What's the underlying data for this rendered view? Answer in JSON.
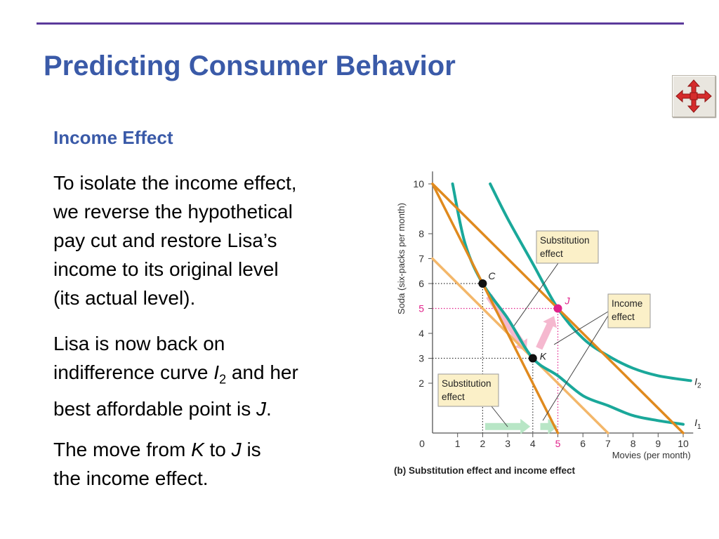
{
  "slide": {
    "title": "Predicting Consumer Behavior",
    "subtitle": "Income Effect",
    "paragraph1": [
      "To isolate the income effect,",
      "we reverse the hypothetical",
      "pay cut and restore Lisa’s",
      "income to its original level",
      "(its actual level)."
    ],
    "paragraph2": {
      "line1": "Lisa is now back on",
      "line2_before": "indifference curve ",
      "line2_var": "I",
      "line2_sub": "2",
      "line2_after": " and her",
      "line3_before": "best affordable point is ",
      "line3_var": "J",
      "line3_after": "."
    },
    "paragraph3": {
      "line1_before": "The move from ",
      "line1_from": "K",
      "line1_mid": " to ",
      "line1_to": "J",
      "line1_after": " is",
      "line2": "the income effect."
    },
    "nav_icon": "four-way-arrow-icon",
    "colors": {
      "title": "#3a5aa8",
      "rule": "#5b3a9b",
      "budget_line": "#e08a1e",
      "budget_line_light": "#f3b76a",
      "indifference_curve": "#1aa89a",
      "highlight": "#e0218a",
      "substitution_arrow": "#b8e6c6",
      "income_arrow": "#f5b8cf",
      "label_box": "#fbf0c8"
    }
  },
  "chart_data": {
    "type": "line",
    "caption": "(b) Substitution effect and income effect",
    "xlabel": "Movies (per month)",
    "ylabel": "Soda (six-packs per month)",
    "xlim": [
      0,
      10
    ],
    "ylim": [
      0,
      10
    ],
    "x_ticks": [
      "0",
      "1",
      "2",
      "3",
      "4",
      "5",
      "6",
      "7",
      "8",
      "9",
      "10"
    ],
    "y_ticks": [
      "2",
      "3",
      "4",
      "5",
      "6",
      "7",
      "8",
      "10"
    ],
    "highlighted_tick": "5",
    "series": [
      {
        "name": "",
        "kind": "budget",
        "x": [
          0,
          10
        ],
        "y": [
          10,
          0
        ]
      },
      {
        "name": "",
        "kind": "budget",
        "x": [
          0,
          5
        ],
        "y": [
          10,
          0
        ]
      },
      {
        "name": "",
        "kind": "budget-shifted",
        "x": [
          0,
          7
        ],
        "y": [
          7,
          0
        ]
      },
      {
        "name": "I1",
        "kind": "indifference",
        "x": [
          0.8,
          1.3,
          2,
          3,
          4,
          5,
          6,
          7,
          8,
          9,
          10
        ],
        "y": [
          10,
          7.6,
          6,
          4.6,
          3,
          2.3,
          1.5,
          1.1,
          0.7,
          0.5,
          0.35
        ]
      },
      {
        "name": "I2",
        "kind": "indifference",
        "x": [
          2.3,
          3,
          4,
          5,
          6,
          7,
          8,
          9,
          10.3
        ],
        "y": [
          10,
          8.6,
          6.8,
          5,
          3.8,
          3.1,
          2.6,
          2.3,
          2.1
        ]
      }
    ],
    "points": [
      {
        "label": "C",
        "x": 2,
        "y": 6
      },
      {
        "label": "K",
        "x": 4,
        "y": 3
      },
      {
        "label": "J",
        "x": 5,
        "y": 5
      }
    ],
    "curve_labels": [
      {
        "text": "I",
        "sub": "2"
      },
      {
        "text": "I",
        "sub": "1"
      }
    ],
    "annotations": [
      {
        "lines": [
          "Substitution",
          "effect"
        ]
      },
      {
        "lines": [
          "Income",
          "effect"
        ]
      },
      {
        "lines": [
          "Substitution",
          "effect"
        ]
      }
    ]
  }
}
